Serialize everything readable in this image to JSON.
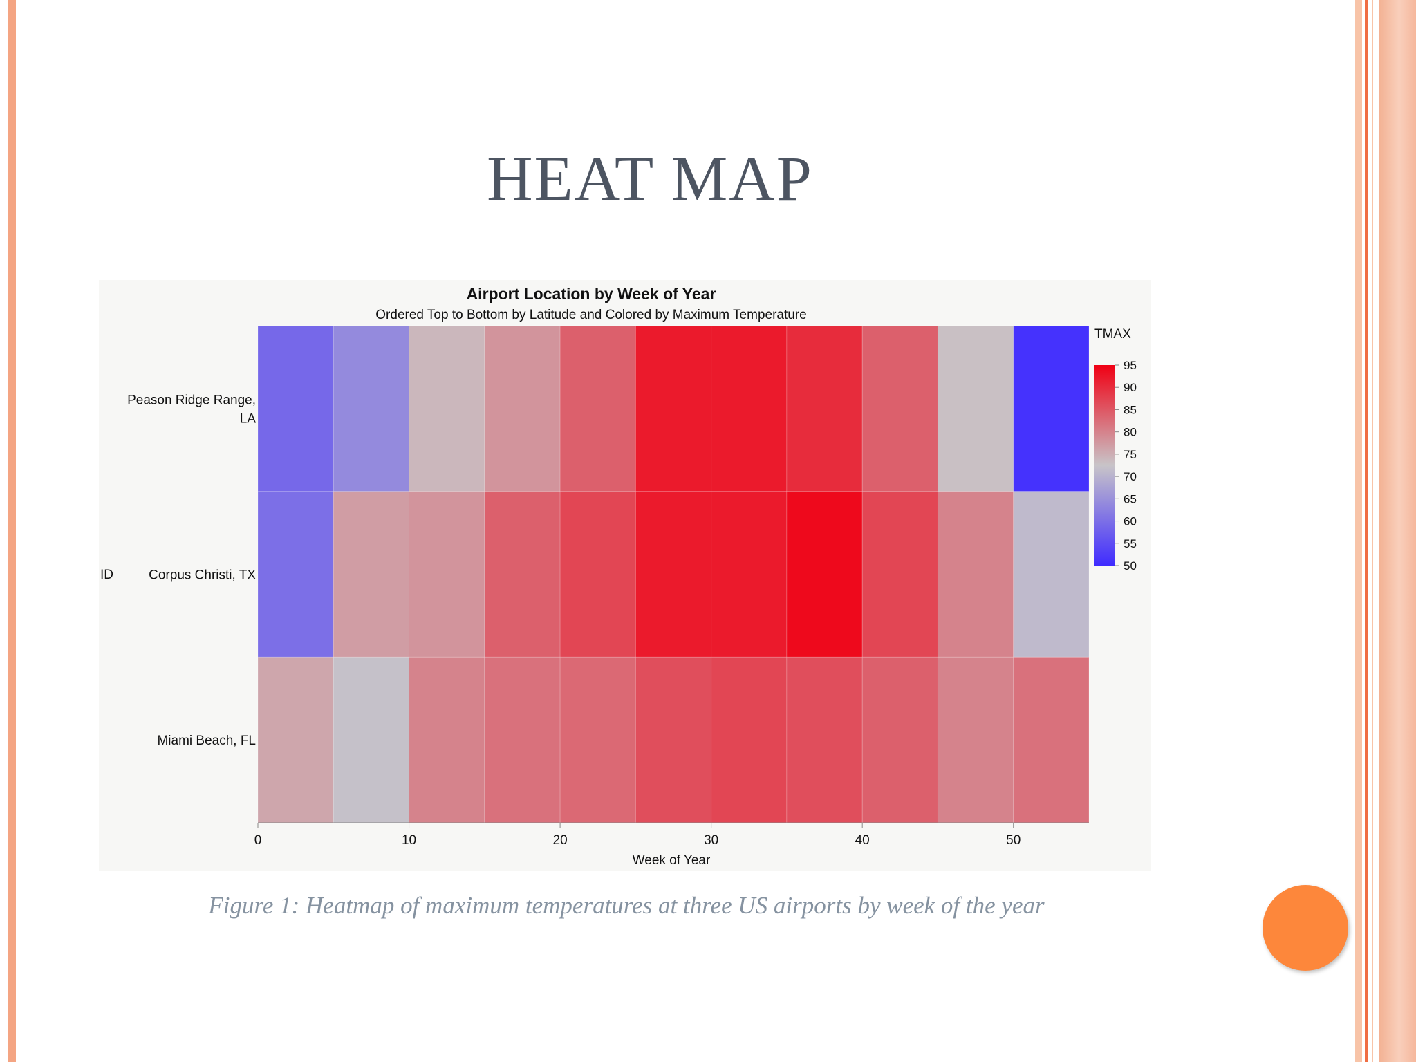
{
  "slide": {
    "title": "HEAT MAP",
    "caption": "Figure 1: Heatmap of maximum temperatures at three US airports by week of the year"
  },
  "colors": {
    "border_left": "#f4a583",
    "border_right_1": "#f8c4a8",
    "border_right_2": "#f06e44",
    "border_right_3": "#f5b79c",
    "accent_dot": "#fd873b",
    "title_text": "#4d5562",
    "caption_text": "#8592a0",
    "scale_low": "#3f2bff",
    "scale_mid": "#c8c4c8",
    "scale_high": "#f00014"
  },
  "chart_data": {
    "type": "heatmap",
    "title": "Airport Location by Week of Year",
    "subtitle": "Ordered Top to Bottom by Latitude and Colored by Maximum Temperature",
    "xlabel": "Week of Year",
    "ylabel": "ID",
    "legend_title": "TMAX",
    "legend_ticks": [
      95,
      90,
      85,
      80,
      75,
      70,
      65,
      60,
      55,
      50
    ],
    "color_domain": [
      50,
      95
    ],
    "x_ticks": [
      0,
      10,
      20,
      30,
      40,
      50
    ],
    "xlim": [
      0,
      55
    ],
    "bin_width": 5,
    "x_bins": [
      0,
      5,
      10,
      15,
      20,
      25,
      30,
      35,
      40,
      45,
      50
    ],
    "rows": [
      {
        "label": [
          "Peason Ridge Range,",
          "LA"
        ],
        "values": [
          59,
          64,
          74,
          78,
          84,
          92,
          92,
          90,
          84,
          73,
          51
        ]
      },
      {
        "label": [
          "Corpus Christi, TX"
        ],
        "values": [
          60,
          77,
          78,
          84,
          87,
          92,
          92,
          94,
          87,
          80,
          71
        ]
      },
      {
        "label": [
          "Miami Beach, FL"
        ],
        "values": [
          76,
          72,
          80,
          82,
          83,
          86,
          87,
          86,
          84,
          80,
          82
        ]
      }
    ]
  }
}
